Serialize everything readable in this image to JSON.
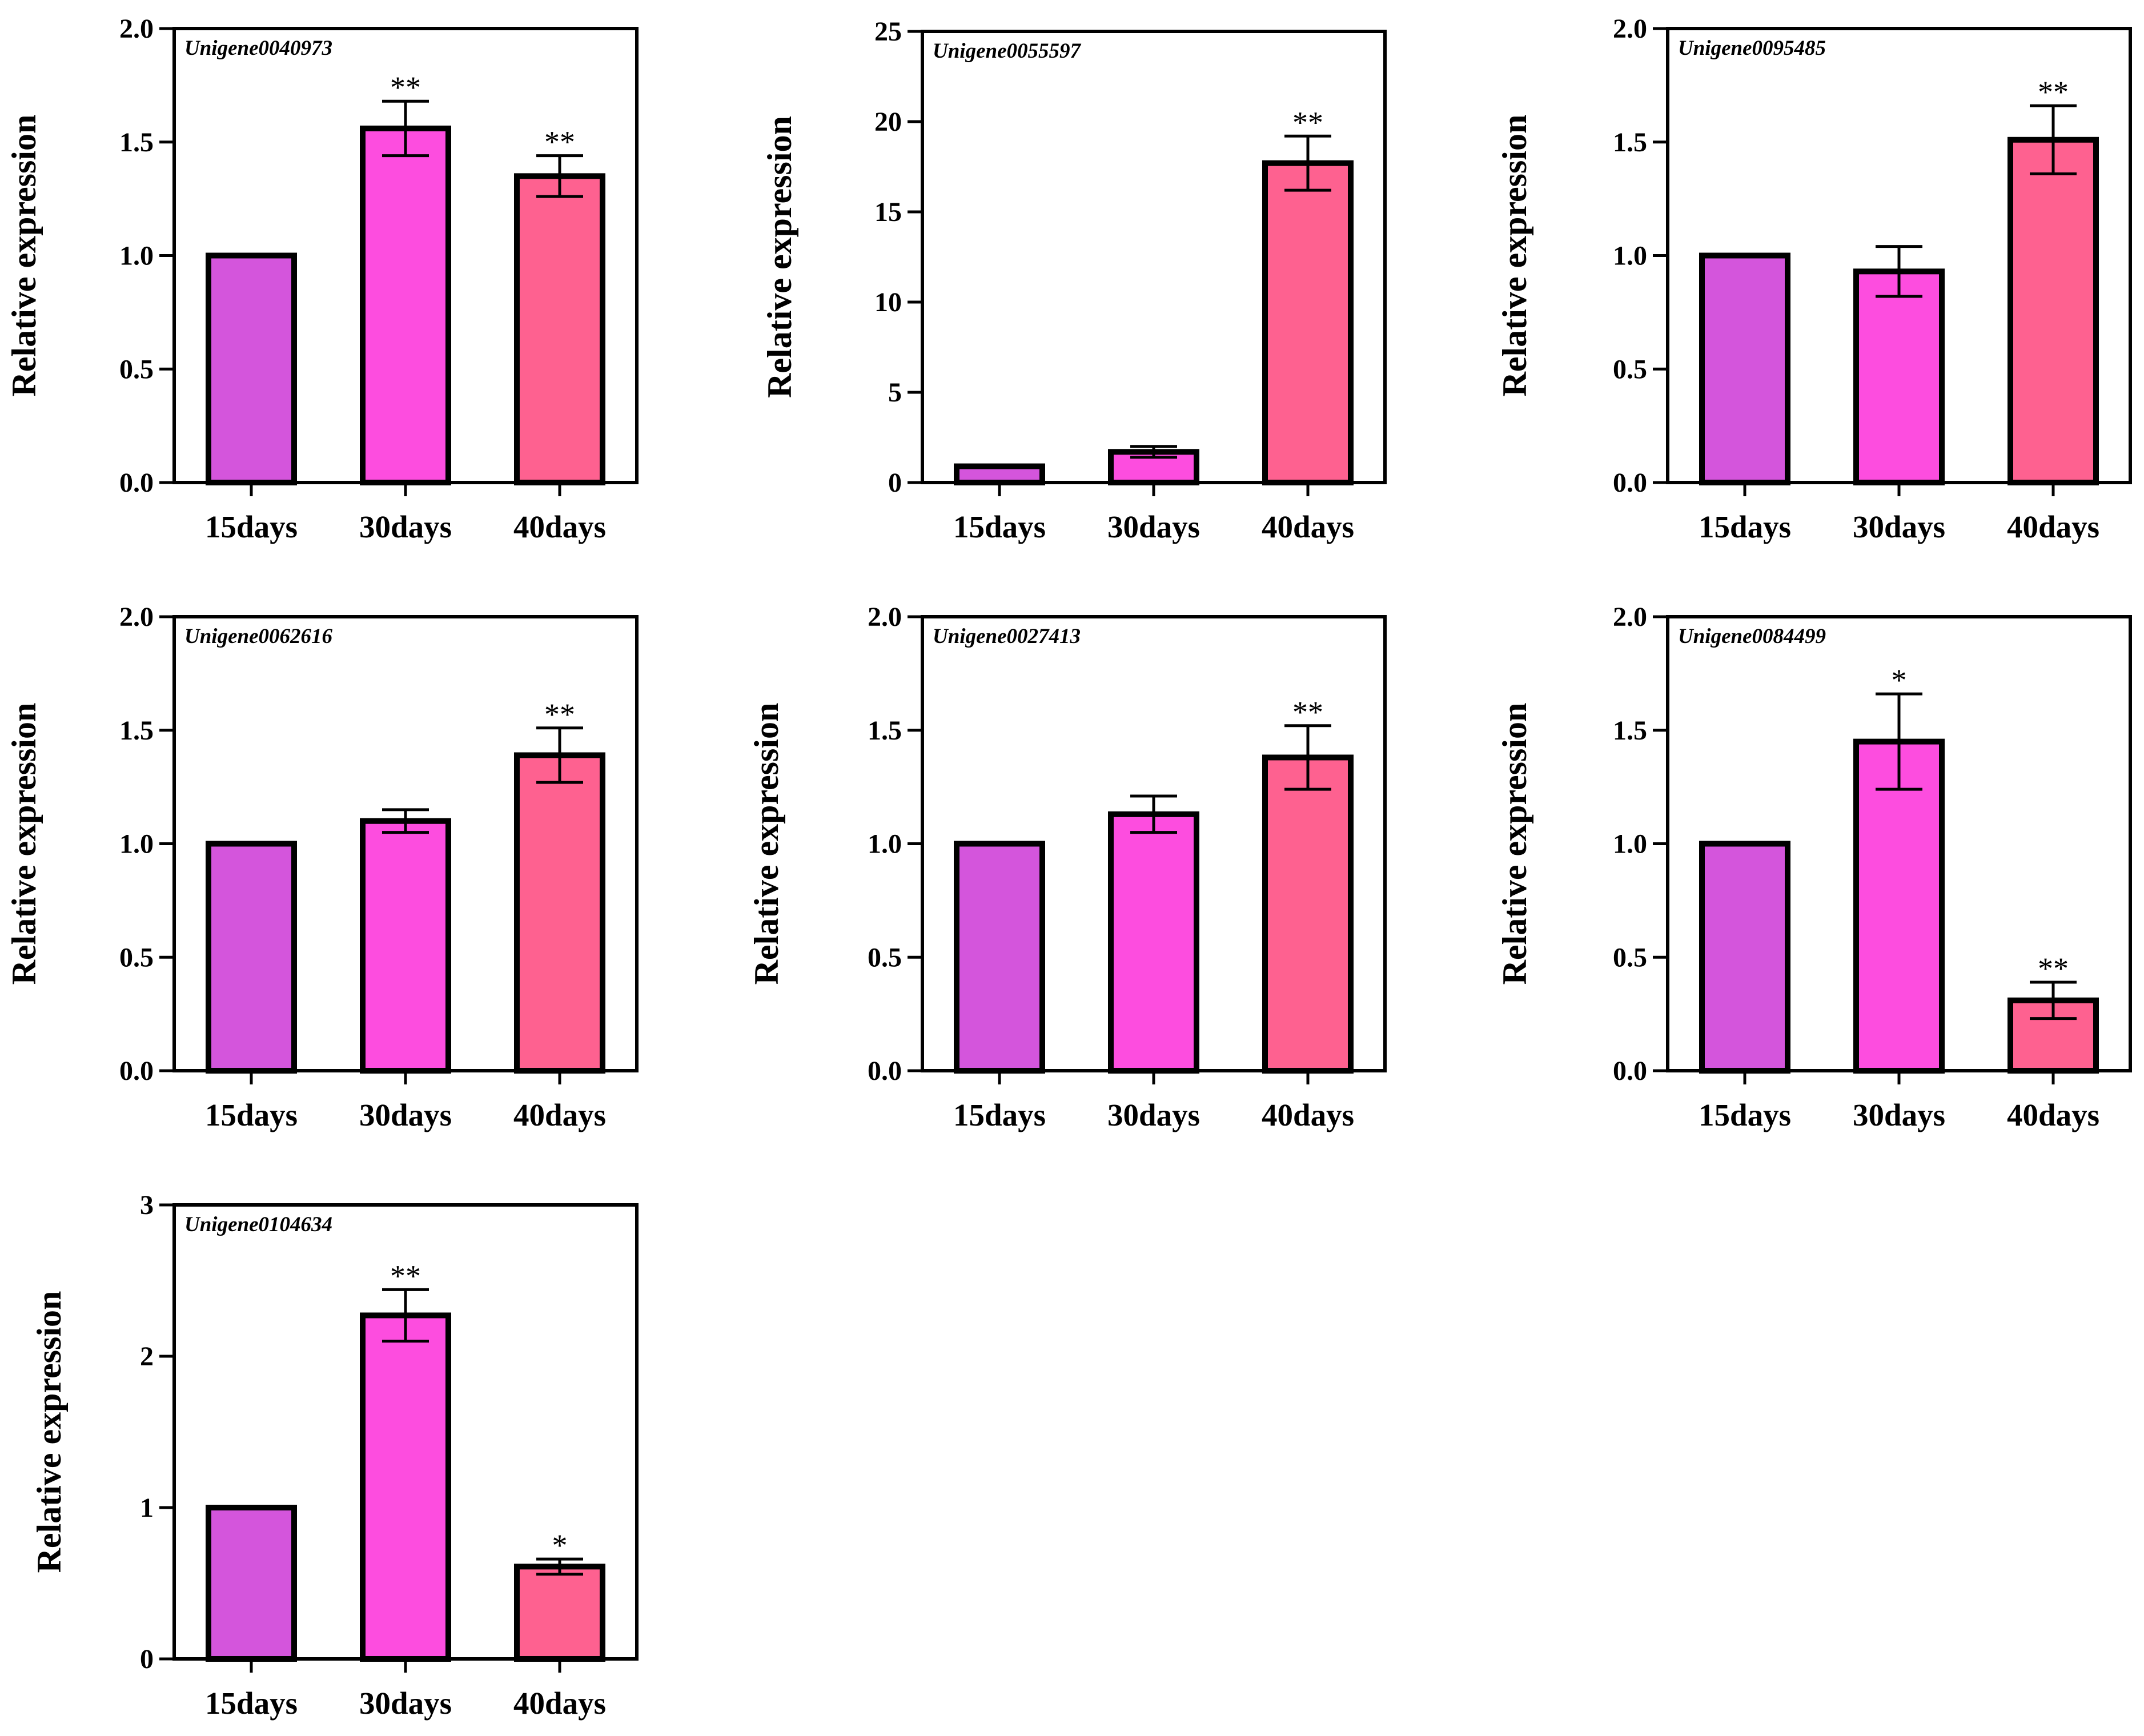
{
  "chart_data": [
    {
      "type": "bar",
      "title": "Unigene0040973",
      "ylabel": "Relative expression",
      "xlabel": "",
      "categories": [
        "15days",
        "30days",
        "40days"
      ],
      "values": [
        1.0,
        1.56,
        1.35
      ],
      "errors": [
        0,
        0.12,
        0.09
      ],
      "significance": [
        "",
        "**",
        "**"
      ],
      "ylim": [
        0,
        2.0
      ],
      "yticks": [
        0.0,
        0.5,
        1.0,
        1.5,
        2.0
      ],
      "ytick_labels": [
        "0.0",
        "0.5",
        "1.0",
        "1.5",
        "2.0"
      ],
      "colors": [
        "#d455dc",
        "#fd4ddf",
        "#fe6190"
      ]
    },
    {
      "type": "bar",
      "title": "Unigene0055597",
      "ylabel": "Relative expression",
      "xlabel": "",
      "categories": [
        "15days",
        "30days",
        "40days"
      ],
      "values": [
        0.9,
        1.7,
        17.7
      ],
      "errors": [
        0,
        0.3,
        1.5
      ],
      "significance": [
        "",
        "",
        "**"
      ],
      "ylim": [
        0,
        25
      ],
      "yticks": [
        0,
        5,
        10,
        15,
        20,
        25
      ],
      "ytick_labels": [
        "0",
        "5",
        "10",
        "15",
        "20",
        "25"
      ],
      "colors": [
        "#d455dc",
        "#fd4ddf",
        "#fe6190"
      ]
    },
    {
      "type": "bar",
      "title": "Unigene0095485",
      "ylabel": "Relative expression",
      "xlabel": "",
      "categories": [
        "15days",
        "30days",
        "40days"
      ],
      "values": [
        1.0,
        0.93,
        1.51
      ],
      "errors": [
        0,
        0.11,
        0.15
      ],
      "significance": [
        "",
        "",
        "**"
      ],
      "ylim": [
        0,
        2.0
      ],
      "yticks": [
        0.0,
        0.5,
        1.0,
        1.5,
        2.0
      ],
      "ytick_labels": [
        "0.0",
        "0.5",
        "1.0",
        "1.5",
        "2.0"
      ],
      "colors": [
        "#d455dc",
        "#fd4ddf",
        "#fe6190"
      ]
    },
    {
      "type": "bar",
      "title": "Unigene0062616",
      "ylabel": "Relative expression",
      "xlabel": "",
      "categories": [
        "15days",
        "30days",
        "40days"
      ],
      "values": [
        1.0,
        1.1,
        1.39
      ],
      "errors": [
        0,
        0.05,
        0.12
      ],
      "significance": [
        "",
        "",
        "**"
      ],
      "ylim": [
        0,
        2.0
      ],
      "yticks": [
        0.0,
        0.5,
        1.0,
        1.5,
        2.0
      ],
      "ytick_labels": [
        "0.0",
        "0.5",
        "1.0",
        "1.5",
        "2.0"
      ],
      "colors": [
        "#d455dc",
        "#fd4ddf",
        "#fe6190"
      ]
    },
    {
      "type": "bar",
      "title": "Unigene0027413",
      "ylabel": "Relative expression",
      "xlabel": "",
      "categories": [
        "15days",
        "30days",
        "40days"
      ],
      "values": [
        1.0,
        1.13,
        1.38
      ],
      "errors": [
        0,
        0.08,
        0.14
      ],
      "significance": [
        "",
        "",
        "**"
      ],
      "ylim": [
        0,
        2.0
      ],
      "yticks": [
        0.0,
        0.5,
        1.0,
        1.5,
        2.0
      ],
      "ytick_labels": [
        "0.0",
        "0.5",
        "1.0",
        "1.5",
        "2.0"
      ],
      "colors": [
        "#d455dc",
        "#fd4ddf",
        "#fe6190"
      ]
    },
    {
      "type": "bar",
      "title": "Unigene0084499",
      "ylabel": "Relative expression",
      "xlabel": "",
      "categories": [
        "15days",
        "30days",
        "40days"
      ],
      "values": [
        1.0,
        1.45,
        0.31
      ],
      "errors": [
        0,
        0.21,
        0.08
      ],
      "significance": [
        "",
        "*",
        "**"
      ],
      "ylim": [
        0,
        2.0
      ],
      "yticks": [
        0.0,
        0.5,
        1.0,
        1.5,
        2.0
      ],
      "ytick_labels": [
        "0.0",
        "0.5",
        "1.0",
        "1.5",
        "2.0"
      ],
      "colors": [
        "#d455dc",
        "#fd4ddf",
        "#fe6190"
      ]
    },
    {
      "type": "bar",
      "title": "Unigene0104634",
      "ylabel": "Relative expression",
      "xlabel": "",
      "categories": [
        "15days",
        "30days",
        "40days"
      ],
      "values": [
        1.0,
        2.27,
        0.61
      ],
      "errors": [
        0,
        0.17,
        0.05
      ],
      "significance": [
        "",
        "**",
        "*"
      ],
      "ylim": [
        0,
        3
      ],
      "yticks": [
        0,
        1,
        2,
        3
      ],
      "ytick_labels": [
        "0",
        "1",
        "2",
        "3"
      ],
      "colors": [
        "#d455dc",
        "#fd4ddf",
        "#fe6190"
      ]
    }
  ]
}
